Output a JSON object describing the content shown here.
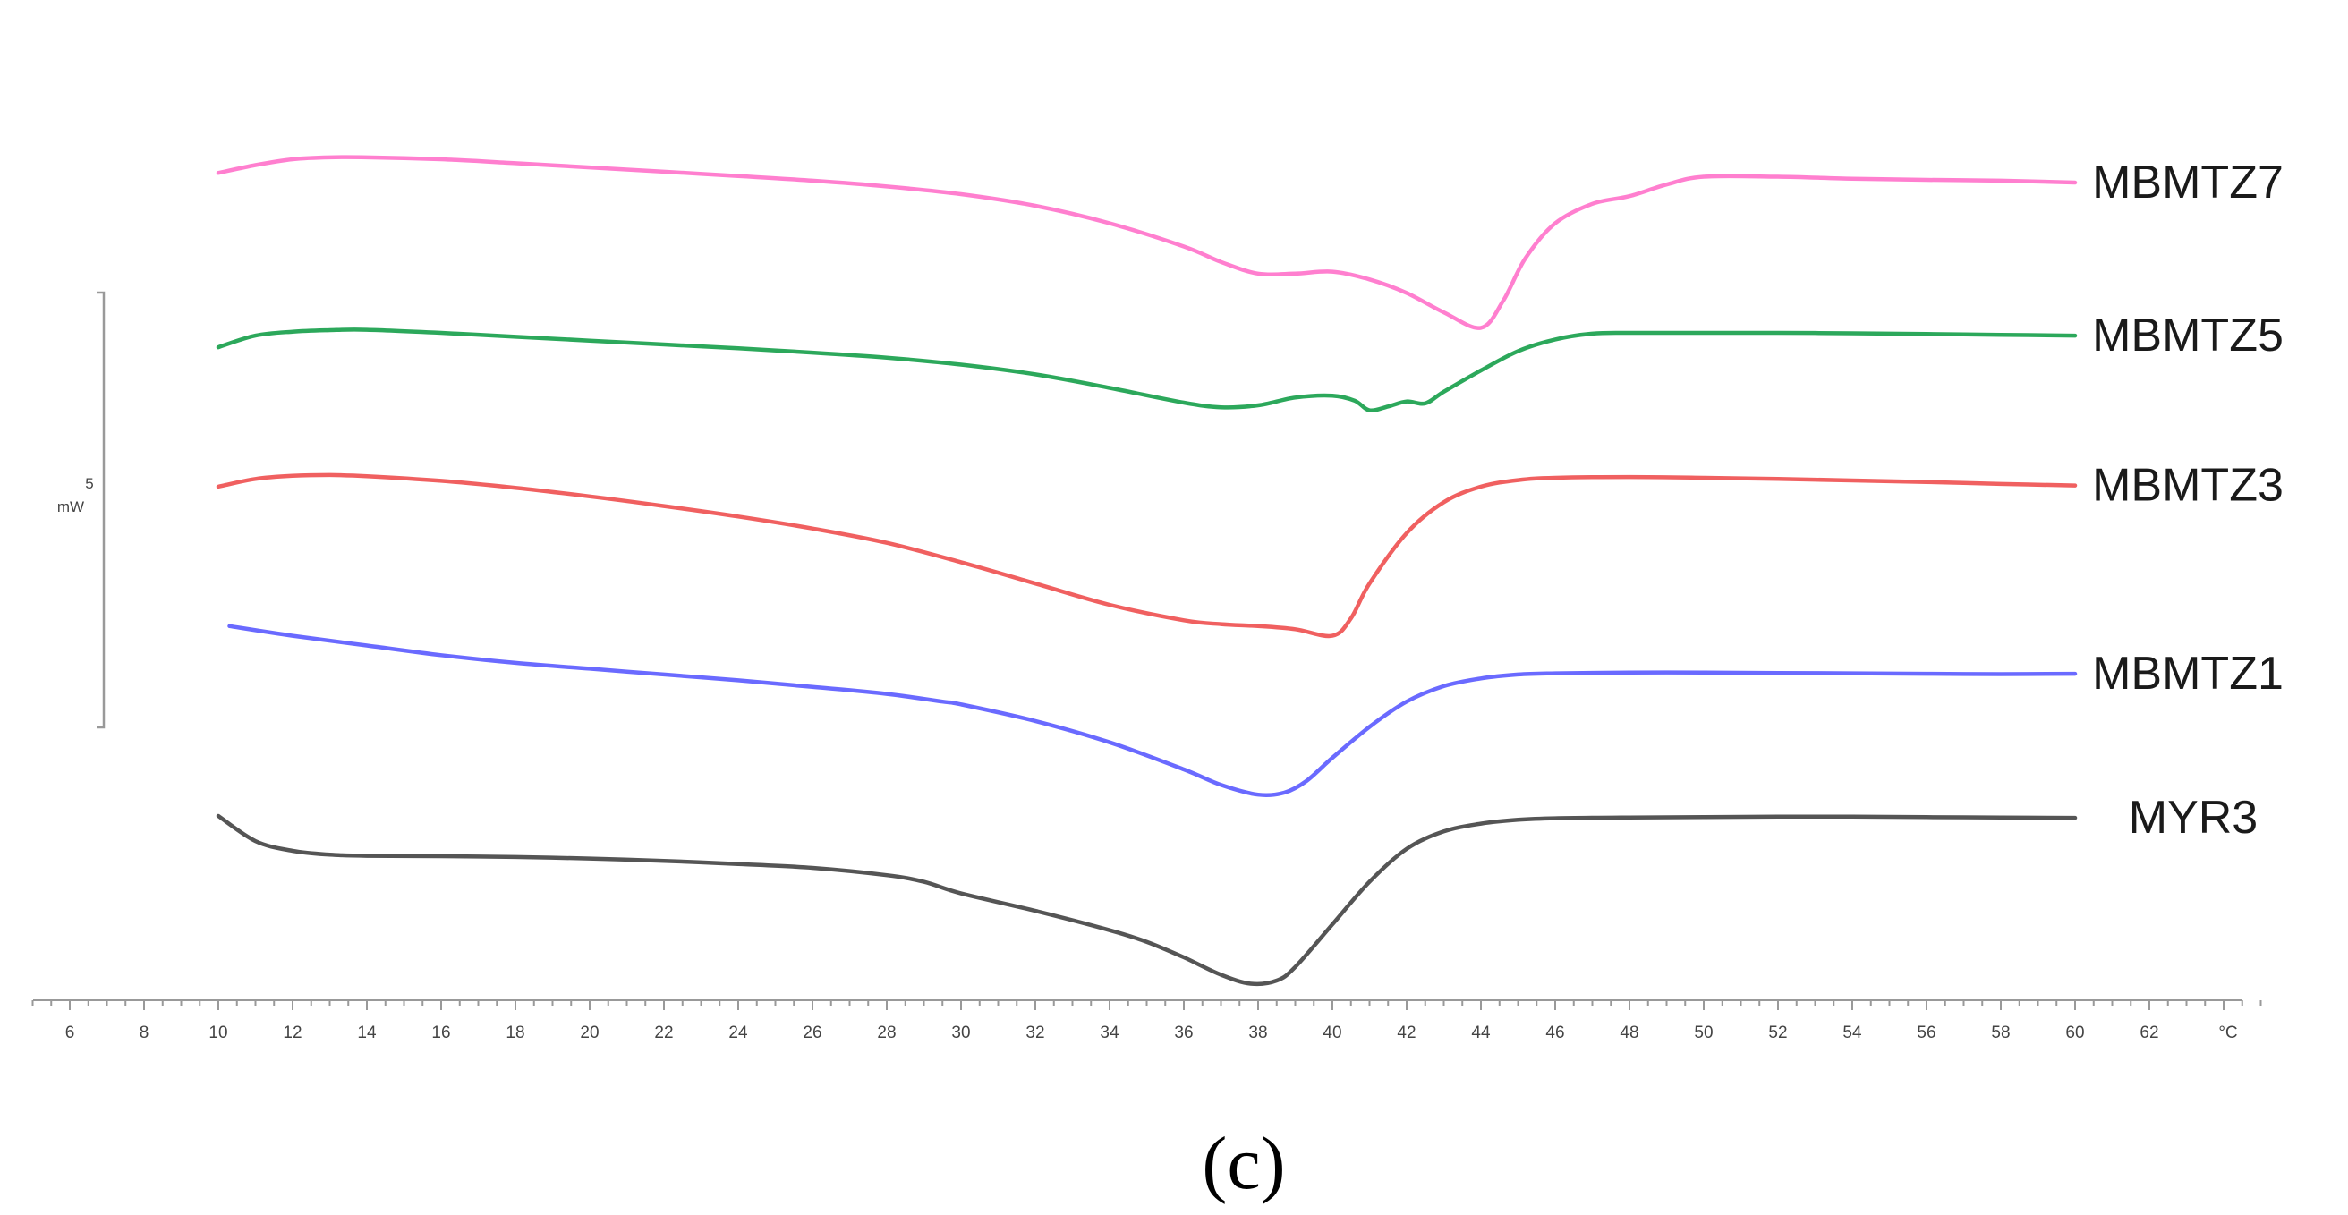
{
  "chart_data": {
    "type": "line",
    "xlabel": "",
    "ylabel": "",
    "x_unit": "°C",
    "xlim": [
      5,
      65
    ],
    "x_ticks": [
      6,
      8,
      10,
      12,
      14,
      16,
      18,
      20,
      22,
      24,
      26,
      28,
      30,
      32,
      34,
      36,
      38,
      40,
      42,
      44,
      46,
      48,
      50,
      52,
      54,
      56,
      58,
      60,
      62
    ],
    "scale_bar": {
      "value": "5",
      "unit": "mW"
    },
    "caption": "(c)",
    "grid": false,
    "legend": "labels at right end of each curve",
    "series": [
      {
        "name": "MBMTZ7",
        "color": "#ff7fcf",
        "points": [
          [
            10,
            40
          ],
          [
            11,
            38
          ],
          [
            12,
            36.5
          ],
          [
            13,
            36
          ],
          [
            14,
            36
          ],
          [
            16,
            36.5
          ],
          [
            18,
            37.5
          ],
          [
            20,
            38.6
          ],
          [
            22,
            39.7
          ],
          [
            24,
            40.8
          ],
          [
            26,
            42
          ],
          [
            28,
            43.5
          ],
          [
            30,
            45.5
          ],
          [
            32,
            48.5
          ],
          [
            34,
            53
          ],
          [
            36,
            59
          ],
          [
            37,
            63
          ],
          [
            38,
            66
          ],
          [
            39,
            66
          ],
          [
            40,
            65.5
          ],
          [
            41,
            67.5
          ],
          [
            42,
            71
          ],
          [
            43,
            76
          ],
          [
            44,
            80
          ],
          [
            44.6,
            73
          ],
          [
            45.2,
            62
          ],
          [
            46,
            53
          ],
          [
            47,
            48
          ],
          [
            48,
            46
          ],
          [
            49,
            43
          ],
          [
            50,
            41
          ],
          [
            52,
            41
          ],
          [
            54,
            41.5
          ],
          [
            56,
            41.8
          ],
          [
            58,
            42
          ],
          [
            60,
            42.5
          ]
        ]
      },
      {
        "name": "MBMTZ5",
        "color": "#2ca85b",
        "points": [
          [
            10,
            85
          ],
          [
            11,
            82
          ],
          [
            12,
            81
          ],
          [
            13,
            80.6
          ],
          [
            14,
            80.5
          ],
          [
            16,
            81.3
          ],
          [
            18,
            82.3
          ],
          [
            20,
            83.3
          ],
          [
            22,
            84.3
          ],
          [
            24,
            85.3
          ],
          [
            26,
            86.4
          ],
          [
            28,
            87.7
          ],
          [
            30,
            89.5
          ],
          [
            32,
            92
          ],
          [
            34,
            95.5
          ],
          [
            36,
            99.3
          ],
          [
            37,
            100.5
          ],
          [
            38,
            100
          ],
          [
            39,
            98
          ],
          [
            40,
            97.5
          ],
          [
            40.6,
            98.8
          ],
          [
            41,
            101.3
          ],
          [
            41.5,
            100.3
          ],
          [
            42,
            99
          ],
          [
            42.5,
            99.5
          ],
          [
            43,
            96.5
          ],
          [
            44,
            91
          ],
          [
            45,
            86
          ],
          [
            46,
            83
          ],
          [
            47,
            81.5
          ],
          [
            48,
            81.3
          ],
          [
            50,
            81.3
          ],
          [
            52,
            81.3
          ],
          [
            54,
            81.4
          ],
          [
            56,
            81.6
          ],
          [
            58,
            81.8
          ],
          [
            60,
            82
          ]
        ]
      },
      {
        "name": "MBMTZ3",
        "color": "#f06060",
        "points": [
          [
            10,
            121
          ],
          [
            11,
            119
          ],
          [
            12,
            118.2
          ],
          [
            13,
            118
          ],
          [
            14,
            118.3
          ],
          [
            16,
            119.5
          ],
          [
            18,
            121.3
          ],
          [
            20,
            123.5
          ],
          [
            22,
            126
          ],
          [
            24,
            128.7
          ],
          [
            26,
            131.8
          ],
          [
            28,
            135.5
          ],
          [
            30,
            140.5
          ],
          [
            32,
            146
          ],
          [
            34,
            151.5
          ],
          [
            36,
            155.5
          ],
          [
            37,
            156.5
          ],
          [
            38,
            157
          ],
          [
            39,
            157.8
          ],
          [
            40,
            159.5
          ],
          [
            40.5,
            155
          ],
          [
            41,
            146
          ],
          [
            42,
            133
          ],
          [
            43,
            125
          ],
          [
            44,
            121
          ],
          [
            45,
            119.3
          ],
          [
            46,
            118.7
          ],
          [
            48,
            118.5
          ],
          [
            50,
            118.7
          ],
          [
            52,
            119
          ],
          [
            54,
            119.4
          ],
          [
            56,
            119.8
          ],
          [
            58,
            120.3
          ],
          [
            60,
            120.7
          ]
        ]
      },
      {
        "name": "MBMTZ1",
        "color": "#6a6aff",
        "points": [
          [
            10.3,
            157
          ],
          [
            12,
            159.5
          ],
          [
            14,
            162
          ],
          [
            16,
            164.5
          ],
          [
            18,
            166.5
          ],
          [
            20,
            168
          ],
          [
            22,
            169.5
          ],
          [
            24,
            171
          ],
          [
            26,
            172.7
          ],
          [
            28,
            174.5
          ],
          [
            29.5,
            176.5
          ],
          [
            30,
            177.2
          ],
          [
            32,
            181.5
          ],
          [
            34,
            187
          ],
          [
            36,
            194
          ],
          [
            37,
            198
          ],
          [
            38,
            200.5
          ],
          [
            38.7,
            200
          ],
          [
            39.3,
            197
          ],
          [
            40,
            191
          ],
          [
            41,
            183
          ],
          [
            42,
            176.5
          ],
          [
            43,
            172.5
          ],
          [
            44,
            170.5
          ],
          [
            45,
            169.5
          ],
          [
            46,
            169.2
          ],
          [
            48,
            169
          ],
          [
            50,
            169
          ],
          [
            52,
            169.1
          ],
          [
            54,
            169.2
          ],
          [
            56,
            169.3
          ],
          [
            58,
            169.4
          ],
          [
            60,
            169.3
          ]
        ]
      },
      {
        "name": "MYR3",
        "color": "#555555",
        "points": [
          [
            10,
            206
          ],
          [
            11,
            212.5
          ],
          [
            12,
            215
          ],
          [
            13,
            216
          ],
          [
            14,
            216.3
          ],
          [
            16,
            216.4
          ],
          [
            18,
            216.6
          ],
          [
            20,
            217
          ],
          [
            22,
            217.6
          ],
          [
            24,
            218.4
          ],
          [
            26,
            219.4
          ],
          [
            28,
            221.3
          ],
          [
            29,
            223
          ],
          [
            30,
            226
          ],
          [
            32,
            230.5
          ],
          [
            34,
            235.5
          ],
          [
            35,
            238.5
          ],
          [
            36,
            242.5
          ],
          [
            37,
            247
          ],
          [
            37.8,
            249.3
          ],
          [
            38.5,
            248.5
          ],
          [
            39,
            245
          ],
          [
            40,
            234
          ],
          [
            41,
            223
          ],
          [
            42,
            214.5
          ],
          [
            43,
            210
          ],
          [
            44,
            208
          ],
          [
            45,
            207
          ],
          [
            46,
            206.6
          ],
          [
            48,
            206.4
          ],
          [
            50,
            206.3
          ],
          [
            52,
            206.2
          ],
          [
            54,
            206.2
          ],
          [
            56,
            206.3
          ],
          [
            58,
            206.4
          ],
          [
            60,
            206.5
          ]
        ]
      }
    ]
  }
}
